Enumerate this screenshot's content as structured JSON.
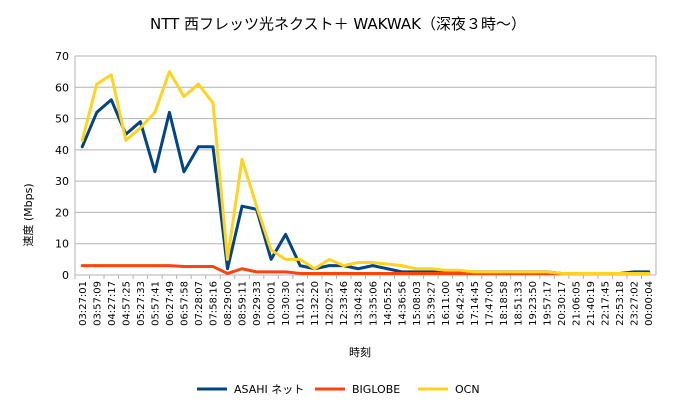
{
  "chart_data": {
    "type": "line",
    "title": "NTT 西フレッツ光ネクスト＋ WAKWAK（深夜３時～）",
    "xlabel": "時刻",
    "ylabel": "速度 (Mbps)",
    "ylim": [
      0,
      70
    ],
    "yticks": [
      "0",
      "10",
      "20",
      "30",
      "40",
      "50",
      "60",
      "70"
    ],
    "grid": true,
    "legend_position": "bottom",
    "x": [
      "03:27:01",
      "03:57:09",
      "04:27:17",
      "04:57:25",
      "05:27:33",
      "05:57:41",
      "06:27:49",
      "06:57:58",
      "07:28:07",
      "07:58:16",
      "08:29:00",
      "08:59:11",
      "09:29:33",
      "10:00:01",
      "10:30:30",
      "11:01:21",
      "11:32:20",
      "12:02:57",
      "12:33:46",
      "13:04:28",
      "13:35:06",
      "14:05:52",
      "14:36:56",
      "15:08:03",
      "15:39:27",
      "16:11:00",
      "16:42:45",
      "17:14:45",
      "17:47:00",
      "18:18:58",
      "18:51:33",
      "19:23:50",
      "19:57:17",
      "20:30:17",
      "21:06:05",
      "21:40:19",
      "22:17:45",
      "22:53:18",
      "23:27:02",
      "00:00:04"
    ],
    "series": [
      {
        "name": "ASAHI ネット",
        "color": "#004586",
        "values": [
          41,
          52,
          56,
          45,
          49,
          33,
          52,
          33,
          41,
          41,
          2,
          22,
          21,
          5,
          13,
          3,
          2,
          3,
          3,
          2,
          3,
          2,
          1,
          1,
          1,
          1,
          1,
          1,
          1,
          1,
          1,
          1,
          1,
          0.5,
          0.5,
          0.5,
          0.5,
          0.5,
          1,
          1
        ]
      },
      {
        "name": "BIGLOBE",
        "color": "#ff420e",
        "values": [
          3,
          3,
          3,
          3,
          3,
          3,
          3,
          2.7,
          2.7,
          2.7,
          0.5,
          2,
          1,
          1,
          1,
          0.5,
          0.5,
          0.5,
          0.5,
          0.5,
          0.5,
          0.5,
          0.5,
          0.5,
          0.5,
          0.5,
          0.5,
          0.5,
          0.5,
          0.5,
          0.5,
          0.5,
          0.5,
          0.5,
          0.5,
          0.5,
          0.5,
          0.5,
          0.5,
          0.5
        ]
      },
      {
        "name": "OCN",
        "color": "#ffd320",
        "values": [
          43,
          61,
          64,
          43,
          47,
          52,
          65,
          57,
          61,
          55,
          5,
          37,
          22,
          8,
          5,
          5,
          2,
          5,
          3,
          4,
          4,
          3.5,
          3,
          2,
          2,
          1.5,
          1.5,
          1,
          1,
          1,
          1,
          1,
          1,
          0.5,
          0.5,
          0.5,
          0.5,
          0.5,
          0.5,
          0.5
        ]
      }
    ]
  }
}
